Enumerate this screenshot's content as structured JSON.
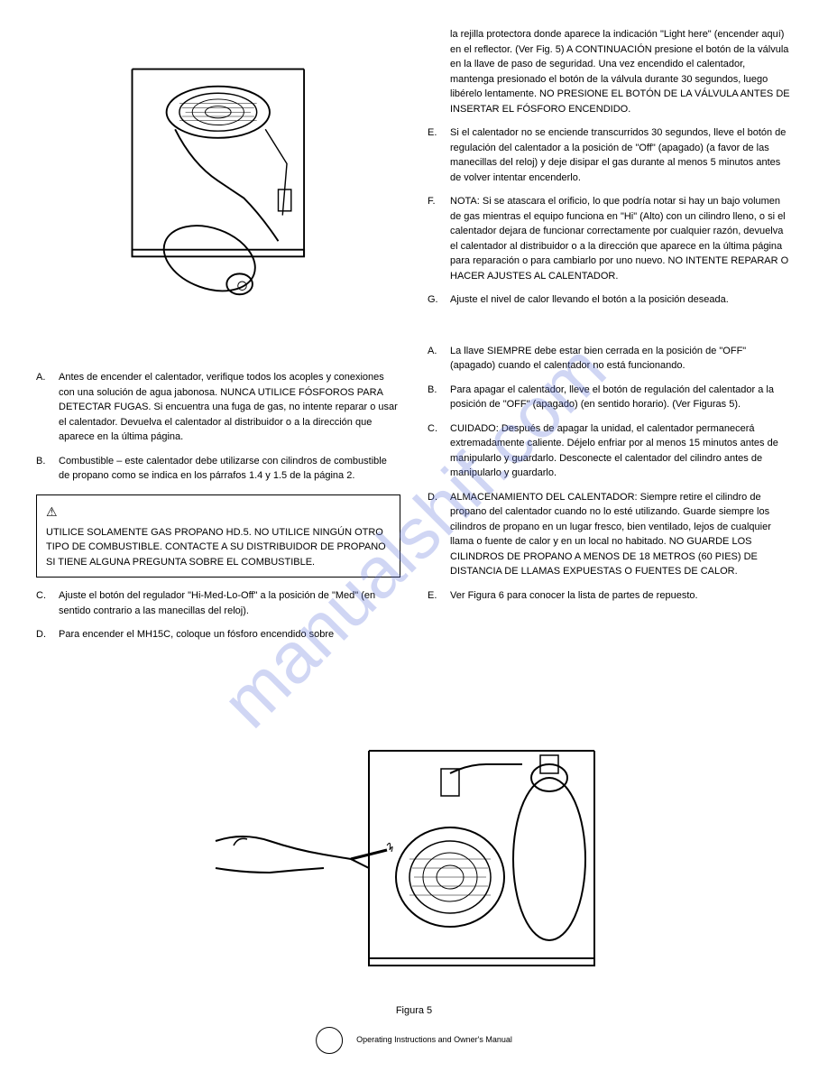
{
  "watermark": "manualshif.com",
  "leftColumn": {
    "items": [
      {
        "letter": "A.",
        "text": "Antes de encender el calentador, verifique todos los acoples y conexiones con una solución de agua jabonosa. NUNCA UTILICE FÓSFOROS PARA DETECTAR FUGAS. Si encuentra una fuga de gas, no intente reparar o usar el calentador. Devuelva el calentador al distribuidor o a la dirección que aparece en la última página."
      },
      {
        "letter": "B.",
        "text": "Combustible – este calentador debe utilizarse con cilindros de combustible de propano como se indica en los párrafos 1.4 y 1.5 de la página 2."
      }
    ],
    "warningBox": "UTILICE SOLAMENTE GAS PROPANO HD.5. NO UTILICE NINGÚN OTRO TIPO DE COMBUSTIBLE. CONTACTE A SU DISTRIBUIDOR DE PROPANO SI TIENE ALGUNA PREGUNTA SOBRE EL COMBUSTIBLE.",
    "itemsAfterBox": [
      {
        "letter": "C.",
        "text": "Ajuste el botón del regulador \"Hi-Med-Lo-Off\" a la posición de \"Med\" (en sentido contrario a las manecillas del reloj)."
      },
      {
        "letter": "D.",
        "text": "Para encender el MH15C, coloque un fósforo encendido sobre"
      }
    ]
  },
  "rightColumn": {
    "topText": "la rejilla protectora donde aparece la indicación \"Light here\" (encender aquí) en el reflector. (Ver Fig. 5) A CONTINUACIÓN presione el botón de la válvula en la llave de paso de seguridad. Una vez encendido el calentador, mantenga presionado el botón de la válvula durante 30 segundos, luego libérelo lentamente.              NO PRESIONE EL BOTÓN DE LA VÁLVULA ANTES DE INSERTAR EL FÓSFORO ENCENDIDO.",
    "topItems": [
      {
        "letter": "E.",
        "text": "Si el calentador no se enciende transcurridos 30 segundos, lleve el botón de regulación del calentador a la posición de \"Off\" (apagado) (a favor de las manecillas del reloj) y deje disipar el gas durante al menos 5 minutos antes de volver intentar encenderlo."
      },
      {
        "letter": "F.",
        "text": "NOTA: Si se atascara el orificio, lo que podría notar si hay un bajo volumen de gas mientras el equipo funciona en \"Hi\" (Alto) con un cilindro lleno, o si el calentador dejara de funcionar correctamente por cualquier razón, devuelva el calentador al distribuidor o a la dirección que aparece en la última página para reparación o para cambiarlo por uno nuevo. NO INTENTE REPARAR O HACER AJUSTES AL CALENTADOR."
      },
      {
        "letter": "G.",
        "text": "Ajuste el nivel de calor llevando el botón a la posición deseada."
      }
    ],
    "bottomItems": [
      {
        "letter": "A.",
        "text": "La llave SIEMPRE debe estar bien cerrada en la posición de \"OFF\" (apagado) cuando el calentador no está funcionando."
      },
      {
        "letter": "B.",
        "text": "Para apagar el calentador, lleve el botón de regulación del calentador a la posición de \"OFF\" (apagado) (en sentido horario). (Ver Figuras 5)."
      },
      {
        "letter": "C.",
        "text": "CUIDADO: Después de apagar la unidad, el calentador permanecerá extremadamente caliente. Déjelo enfriar por al menos 15 minutos antes de manipularlo y guardarlo. Desconecte el calentador del cilindro antes de manipularlo y guardarlo."
      },
      {
        "letter": "D.",
        "text": "ALMACENAMIENTO DEL CALENTADOR: Siempre retire el cilindro de propano del calentador cuando no lo esté utilizando. Guarde siempre los cilindros de propano en un lugar fresco, bien ventilado, lejos de cualquier llama o fuente de calor y en un local no habitado. NO GUARDE LOS CILINDROS DE PROPANO A MENOS DE 18 METROS (60 PIES) DE DISTANCIA DE LLAMAS EXPUESTAS O FUENTES DE CALOR."
      },
      {
        "letter": "E.",
        "text": "Ver Figura 6 para conocer la lista de partes de repuesto."
      }
    ]
  },
  "figureCaption": "Figura 5",
  "footerText": "Operating Instructions and Owner's Manual"
}
